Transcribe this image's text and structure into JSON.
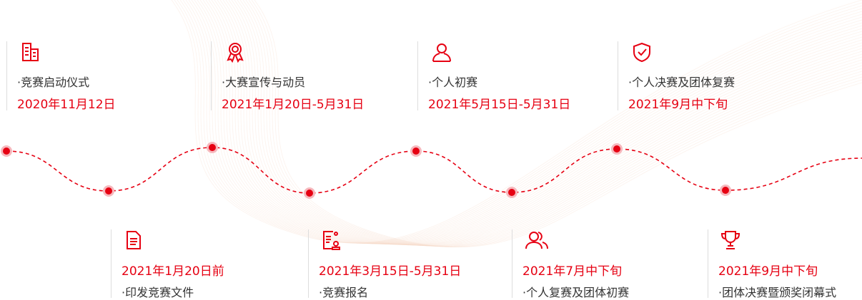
{
  "accent_color": "#e60012",
  "top_items": [
    {
      "icon": "building-icon",
      "title": "·竞赛启动仪式",
      "date": "2020年11月12日"
    },
    {
      "icon": "award-ribbon-icon",
      "title": "·大赛宣传与动员",
      "date": "2021年1月20日-5月31日"
    },
    {
      "icon": "person-icon",
      "title": "·个人初赛",
      "date": "2021年5月15日-5月31日"
    },
    {
      "icon": "shield-check-icon",
      "title": "·个人决赛及团体复赛",
      "date": "2021年9月中下旬"
    }
  ],
  "bottom_items": [
    {
      "icon": "document-icon",
      "date": "2021年1月20日前",
      "title": "·印发竞赛文件"
    },
    {
      "icon": "registration-form-icon",
      "date": "2021年3月15日-5月31日",
      "title": "·竞赛报名"
    },
    {
      "icon": "group-icon",
      "date": "2021年7月中下旬",
      "title": "·个人复赛及团体初赛"
    },
    {
      "icon": "trophy-icon",
      "date": "2021年9月中下旬",
      "title": "·团体决赛暨颁奖闭幕式"
    }
  ]
}
